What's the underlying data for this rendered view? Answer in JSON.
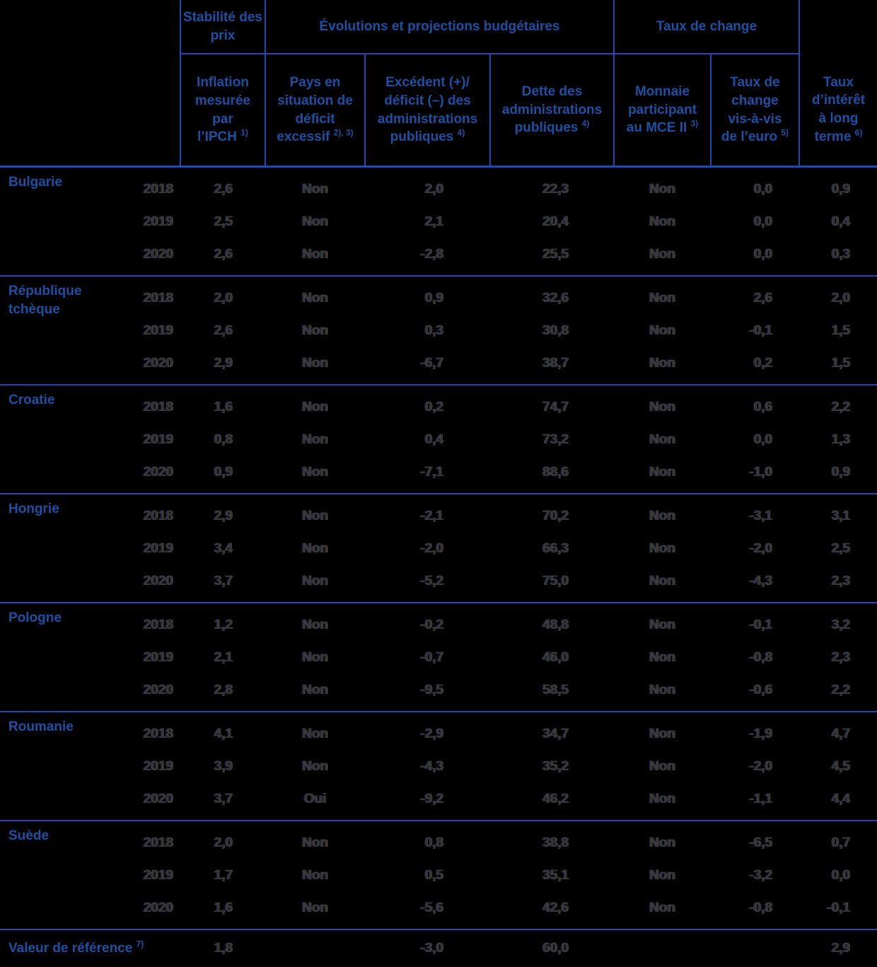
{
  "colors": {
    "background": "#000000",
    "header_text": "#1d4fa3",
    "grid_lines": "#1e4ab4",
    "body_text": "#34373d"
  },
  "table": {
    "group_headers": [
      {
        "label": "Stabilité des prix",
        "colspan": 1
      },
      {
        "label": "Évolutions et projections budgétaires",
        "colspan": 3
      },
      {
        "label": "Taux de change",
        "colspan": 2
      }
    ],
    "column_headers": [
      {
        "label": "Inflation mesurée par l’IPCH",
        "note": "1)"
      },
      {
        "label": "Pays en situation de déficit excessif",
        "note": "2), 3)"
      },
      {
        "label": "Excédent (+)/ déficit (–) des administrations publiques",
        "note": "4)"
      },
      {
        "label": "Dette des administrations publiques",
        "note": "4)"
      },
      {
        "label": "Monnaie participant au MCE II",
        "note": "3)"
      },
      {
        "label": "Taux de change vis-à-vis de l’euro",
        "note": "5)"
      },
      {
        "label": "Taux d’intérêt à long terme",
        "note": "6)"
      }
    ],
    "countries": [
      {
        "name": "Bulgarie",
        "rows": [
          {
            "year": "2018",
            "values": [
              "2,6",
              "Non",
              "2,0",
              "22,3",
              "Non",
              "0,0",
              "0,9"
            ]
          },
          {
            "year": "2019",
            "values": [
              "2,5",
              "Non",
              "2,1",
              "20,4",
              "Non",
              "0,0",
              "0,4"
            ]
          },
          {
            "year": "2020",
            "values": [
              "2,6",
              "Non",
              "-2,8",
              "25,5",
              "Non",
              "0,0",
              "0,3"
            ]
          }
        ]
      },
      {
        "name": "République tchèque",
        "rows": [
          {
            "year": "2018",
            "values": [
              "2,0",
              "Non",
              "0,9",
              "32,6",
              "Non",
              "2,6",
              "2,0"
            ]
          },
          {
            "year": "2019",
            "values": [
              "2,6",
              "Non",
              "0,3",
              "30,8",
              "Non",
              "-0,1",
              "1,5"
            ]
          },
          {
            "year": "2020",
            "values": [
              "2,9",
              "Non",
              "-6,7",
              "38,7",
              "Non",
              "0,2",
              "1,5"
            ]
          }
        ]
      },
      {
        "name": "Croatie",
        "rows": [
          {
            "year": "2018",
            "values": [
              "1,6",
              "Non",
              "0,2",
              "74,7",
              "Non",
              "0,6",
              "2,2"
            ]
          },
          {
            "year": "2019",
            "values": [
              "0,8",
              "Non",
              "0,4",
              "73,2",
              "Non",
              "0,0",
              "1,3"
            ]
          },
          {
            "year": "2020",
            "values": [
              "0,9",
              "Non",
              "-7,1",
              "88,6",
              "Non",
              "-1,0",
              "0,9"
            ]
          }
        ]
      },
      {
        "name": "Hongrie",
        "rows": [
          {
            "year": "2018",
            "values": [
              "2,9",
              "Non",
              "-2,1",
              "70,2",
              "Non",
              "-3,1",
              "3,1"
            ]
          },
          {
            "year": "2019",
            "values": [
              "3,4",
              "Non",
              "-2,0",
              "66,3",
              "Non",
              "-2,0",
              "2,5"
            ]
          },
          {
            "year": "2020",
            "values": [
              "3,7",
              "Non",
              "-5,2",
              "75,0",
              "Non",
              "-4,3",
              "2,3"
            ]
          }
        ]
      },
      {
        "name": "Pologne",
        "rows": [
          {
            "year": "2018",
            "values": [
              "1,2",
              "Non",
              "-0,2",
              "48,8",
              "Non",
              "-0,1",
              "3,2"
            ]
          },
          {
            "year": "2019",
            "values": [
              "2,1",
              "Non",
              "-0,7",
              "46,0",
              "Non",
              "-0,8",
              "2,3"
            ]
          },
          {
            "year": "2020",
            "values": [
              "2,8",
              "Non",
              "-9,5",
              "58,5",
              "Non",
              "-0,6",
              "2,2"
            ]
          }
        ]
      },
      {
        "name": "Roumanie",
        "rows": [
          {
            "year": "2018",
            "values": [
              "4,1",
              "Non",
              "-2,9",
              "34,7",
              "Non",
              "-1,9",
              "4,7"
            ]
          },
          {
            "year": "2019",
            "values": [
              "3,9",
              "Non",
              "-4,3",
              "35,2",
              "Non",
              "-2,0",
              "4,5"
            ]
          },
          {
            "year": "2020",
            "values": [
              "3,7",
              "Oui",
              "-9,2",
              "46,2",
              "Non",
              "-1,1",
              "4,4"
            ]
          }
        ]
      },
      {
        "name": "Suède",
        "rows": [
          {
            "year": "2018",
            "values": [
              "2,0",
              "Non",
              "0,8",
              "38,8",
              "Non",
              "-6,5",
              "0,7"
            ]
          },
          {
            "year": "2019",
            "values": [
              "1,7",
              "Non",
              "0,5",
              "35,1",
              "Non",
              "-3,2",
              "0,0"
            ]
          },
          {
            "year": "2020",
            "values": [
              "1,6",
              "Non",
              "-5,6",
              "42,6",
              "Non",
              "-0,8",
              "-0,1"
            ]
          }
        ]
      }
    ],
    "reference_row": {
      "label": "Valeur de référence",
      "note": "7)",
      "values": [
        "1,8",
        "",
        "-3,0",
        "60,0",
        "",
        "",
        "2,9"
      ]
    }
  }
}
